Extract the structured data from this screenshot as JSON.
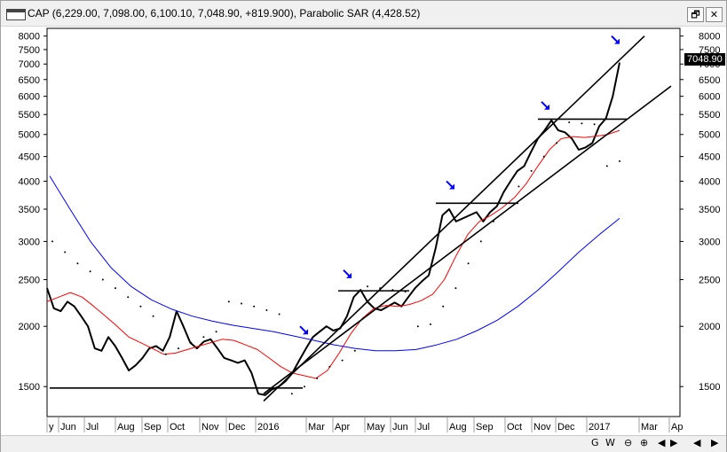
{
  "window": {
    "title": "CAP (6,229.00, 7,098.00, 6,100.10, 7,048.90, +819.900), Parabolic SAR (4,428.52)",
    "restore_glyph": "🗗",
    "close_glyph": "✕",
    "current_price_label": "7048.90"
  },
  "footer": {
    "zoom_labels": [
      "G",
      "W",
      "⊖",
      "⊕"
    ],
    "nav_glyphs": [
      "◀",
      "▶",
      "◀",
      "▶"
    ]
  },
  "chart_data": {
    "type": "line",
    "title": "CAP (6,229.00, 7,098.00, 6,100.10, 7,048.90, +819.900), Parabolic SAR (4,428.52)",
    "y_scale": "log",
    "ylim": [
      1300,
      8300
    ],
    "y_ticks": [
      1500,
      2000,
      2500,
      3000,
      3500,
      4000,
      4500,
      5000,
      5500,
      6000,
      6500,
      7000,
      7500,
      8000
    ],
    "x_tick_labels": [
      "y",
      "Jun",
      "Jul",
      "Aug",
      "Sep",
      "Oct",
      "Nov",
      "Dec",
      "2016",
      "Mar",
      "Apr",
      "May",
      "Jun",
      "Jul",
      "Aug",
      "Sep",
      "Oct",
      "Nov",
      "Dec",
      "2017",
      "Mar",
      "Ap"
    ],
    "colors": {
      "price": "#000000",
      "red_ma": "#ff0000",
      "blue_ma": "#0000ff",
      "sar": "#000000",
      "arrows": "#0000ff",
      "background": "#ffffff"
    },
    "series": [
      {
        "kind": "price",
        "values": [
          2400,
          2180,
          2150,
          2250,
          2200,
          2100,
          2000,
          1800,
          1780,
          1900,
          1820,
          1720,
          1620,
          1660,
          1720,
          1800,
          1820,
          1780,
          1900,
          2150,
          2000,
          1850,
          1800,
          1860,
          1880,
          1800,
          1720,
          1700,
          1680,
          1700,
          1600,
          1450,
          1440,
          1480,
          1500,
          1540,
          1600,
          1700,
          1800,
          1900,
          1950,
          2000,
          1960,
          1980,
          2100,
          2300,
          2380,
          2250,
          2180,
          2160,
          2200,
          2240,
          2200,
          2300,
          2400,
          2480,
          2550,
          2900,
          3400,
          3500,
          3300,
          3350,
          3400,
          3450,
          3300,
          3450,
          3550,
          3800,
          4000,
          4200,
          4300,
          4600,
          4900,
          5100,
          5350,
          5100,
          5050,
          4900,
          4650,
          4700,
          4800,
          5200,
          5400,
          6000,
          7050
        ]
      },
      {
        "kind": "red_ma",
        "values": [
          2250,
          2300,
          2350,
          2300,
          2200,
          2100,
          2000,
          1900,
          1850,
          1800,
          1750,
          1760,
          1790,
          1820,
          1850,
          1880,
          1870,
          1830,
          1790,
          1720,
          1650,
          1600,
          1580,
          1560,
          1620,
          1760,
          1930,
          2080,
          2180,
          2210,
          2200,
          2220,
          2260,
          2330,
          2500,
          2800,
          3100,
          3300,
          3400,
          3530,
          3700,
          3950,
          4300,
          4650,
          4900,
          4950,
          4930,
          4960,
          5000,
          5100
        ]
      },
      {
        "kind": "blue_ma",
        "values": [
          4100,
          3500,
          3000,
          2650,
          2420,
          2270,
          2170,
          2100,
          2050,
          2010,
          1980,
          1950,
          1910,
          1870,
          1830,
          1800,
          1780,
          1780,
          1790,
          1830,
          1880,
          1960,
          2060,
          2200,
          2380,
          2600,
          2850,
          3100,
          3350
        ]
      },
      {
        "kind": "sar",
        "values": [
          3000,
          2850,
          2700,
          2600,
          2500,
          2400,
          2300,
          2200,
          2100,
          1750,
          1800,
          1850,
          1900,
          1950,
          2250,
          2230,
          2200,
          2160,
          2120,
          1450,
          1500,
          1560,
          1650,
          1700,
          1780,
          2420,
          2400,
          2380,
          2360,
          2000,
          2020,
          2200,
          2400,
          2700,
          3000,
          3300,
          3600,
          3900,
          4200,
          4500,
          4800,
          5300,
          5270,
          5250,
          4300,
          4400
        ]
      }
    ],
    "trendlines": [
      {
        "from": [
          "Jan 2016",
          1400
        ],
        "to": [
          "Mar 2017",
          8000
        ]
      },
      {
        "from": [
          "Jan 2016",
          1450
        ],
        "to": [
          "Apr 2017",
          6300
        ]
      },
      {
        "kind": "horizontal",
        "value": 1490,
        "from": "Apr",
        "to": "Mar 2016"
      },
      {
        "kind": "horizontal",
        "value": 2370,
        "from": "Apr 2016",
        "to": "Jul 2016"
      },
      {
        "kind": "horizontal",
        "value": 3600,
        "from": "Aug 2016",
        "to": "Oct 2016"
      },
      {
        "kind": "horizontal",
        "value": 5380,
        "from": "Nov 2016",
        "to": "Feb 2017"
      }
    ],
    "markers": [
      {
        "kind": "arrow",
        "x": "Mar 2016",
        "y": 1950
      },
      {
        "kind": "arrow",
        "x": "Apr 2016",
        "y": 2550
      },
      {
        "kind": "arrow",
        "x": "Aug 2016",
        "y": 3900
      },
      {
        "kind": "arrow",
        "x": "Nov 2016",
        "y": 5700
      },
      {
        "kind": "arrow",
        "x": "Feb 2017",
        "y": 7800
      }
    ]
  }
}
